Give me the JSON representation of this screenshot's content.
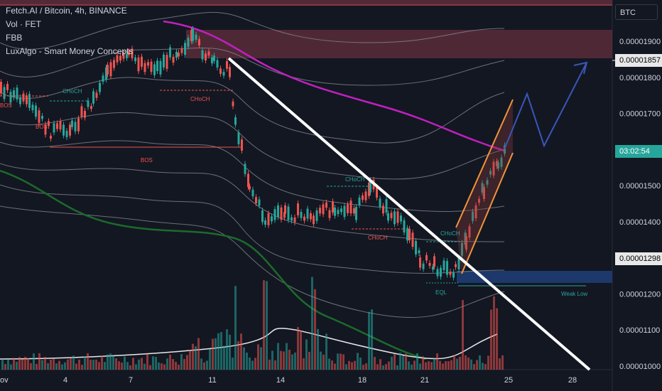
{
  "header": {
    "title": "Fetch.AI / Bitcoin, 4h, BINANCE",
    "indicators": [
      "Vol · FET",
      "FBB",
      "LuxAlgo - Smart Money Concepts"
    ]
  },
  "currency_label": "BTC",
  "price_axis": {
    "ticks": [
      "0.00001900",
      "0.00001800",
      "0.00001700",
      "0.00001500",
      "0.00001400",
      "0.00001200",
      "0.00001100",
      "0.00001000"
    ],
    "current_price_label": "0.00001857",
    "countdown_label": "03:02:54",
    "marked_price_label": "0.00001298"
  },
  "time_axis": {
    "ticks": [
      "ov",
      "4",
      "7",
      "11",
      "14",
      "18",
      "21",
      "25",
      "28"
    ]
  },
  "annotations": {
    "bos_labels": [
      "BOS",
      "BOS",
      "BOS"
    ],
    "choch_labels": [
      "CHoCH",
      "CHoCH",
      "CHoCH",
      "CHoCH",
      "CHoCH"
    ],
    "eql_label": "EQL",
    "weak_low_label": "Weak Low"
  },
  "colors": {
    "background": "#131722",
    "up_candle": "#26a69a",
    "down_candle": "#ef5350",
    "ma_purple": "#c020c0",
    "ma_green": "#1b6b2b",
    "band_gray": "#8a8d96",
    "trendline": "#ffffff",
    "channel": "#f0953a",
    "projection": "#3a56b8",
    "supply_zone": "#5a2c3a",
    "demand_zone": "#1d3a70"
  },
  "icons": []
}
